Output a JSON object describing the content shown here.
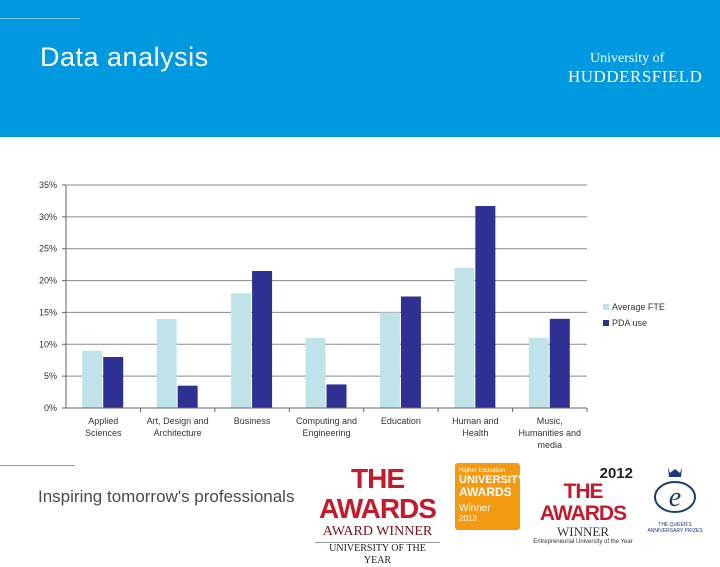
{
  "slide": {
    "title": "Data analysis",
    "university_line1": "University of",
    "university_line2": "HUDDERSFIELD",
    "tagline": "Inspiring tomorrow's professionals"
  },
  "awards": {
    "award1_title": "THE AWARDS",
    "award1_sub": "AWARD WINNER",
    "award1_sub2": "UNIVERSITY OF THE YEAR",
    "award2_top": "Higher Education",
    "award2_title1": "UNIVERSITY",
    "award2_title2": "AWARDS",
    "award2_winner": "Winner",
    "award2_year": "2013",
    "award3_year": "2012",
    "award3_title": "THE AWARDS",
    "award3_winner": "WINNER",
    "award3_sub": "Entrepreneurial University of the Year",
    "award4_sub": "THE QUEEN'S ANNIVERSARY PRIZES"
  },
  "colors": {
    "header": "#0099e0",
    "series1": "#bfe3e8",
    "series2": "#2e3192"
  },
  "chart_data": {
    "type": "bar",
    "title": "",
    "xlabel": "",
    "ylabel": "",
    "ylim": [
      0,
      35
    ],
    "yticks": [
      0,
      5,
      10,
      15,
      20,
      25,
      30,
      35
    ],
    "ytick_labels": [
      "0%",
      "5%",
      "10%",
      "15%",
      "20%",
      "25%",
      "30%",
      "35%"
    ],
    "categories": [
      [
        "Applied",
        "Sciences"
      ],
      [
        "Art, Design and",
        "Architecture"
      ],
      [
        "Business"
      ],
      [
        "Computing and",
        "Engineering"
      ],
      [
        "Education"
      ],
      [
        "Human and",
        "Health"
      ],
      [
        "Music,",
        "Humanities and",
        "media"
      ]
    ],
    "series": [
      {
        "name": "Average FTE",
        "color": "#bfe3e8",
        "values": [
          9,
          14,
          18,
          11,
          15,
          22,
          11
        ]
      },
      {
        "name": "PDA use",
        "color": "#2e3192",
        "values": [
          8,
          3.5,
          21.5,
          3.7,
          17.5,
          31.7,
          14
        ]
      }
    ],
    "legend_position": "right"
  }
}
